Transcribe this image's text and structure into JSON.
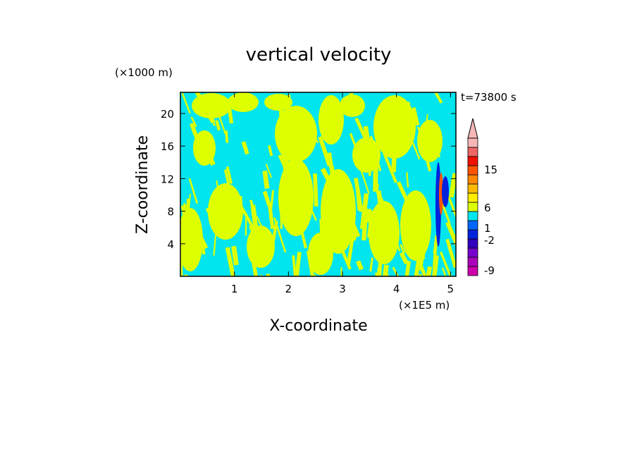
{
  "chart_data": {
    "type": "heatmap",
    "title": "vertical velocity",
    "xlabel": "X-coordinate",
    "ylabel": "Z-coordinate",
    "x_unit": "(×1E5 m)",
    "y_unit": "(×1000 m)",
    "time_label": "t=73800 s",
    "xlim": [
      0,
      5.1
    ],
    "ylim": [
      0,
      22.6
    ],
    "xticks": [
      1,
      2,
      3,
      4,
      5
    ],
    "yticks": [
      4,
      8,
      12,
      16,
      20
    ],
    "colorbar": {
      "labels": [
        "15",
        "6",
        "1",
        "-2",
        "-9"
      ],
      "levels": [
        {
          "color": "#cc00aa"
        },
        {
          "color": "#aa00bb"
        },
        {
          "color": "#7700cc"
        },
        {
          "color": "#3300bb"
        },
        {
          "color": "#0022dd"
        },
        {
          "color": "#0066ff"
        },
        {
          "color": "#00e5ee"
        },
        {
          "color": "#ddff00"
        },
        {
          "color": "#ffee00"
        },
        {
          "color": "#ffbb00"
        },
        {
          "color": "#ff8800"
        },
        {
          "color": "#ff5500"
        },
        {
          "color": "#ee1100"
        },
        {
          "color": "#ee6666"
        },
        {
          "color": "#f7b6b6"
        }
      ]
    },
    "field_colors": {
      "positive": "#ddff00",
      "negative": "#00e5ee"
    }
  }
}
